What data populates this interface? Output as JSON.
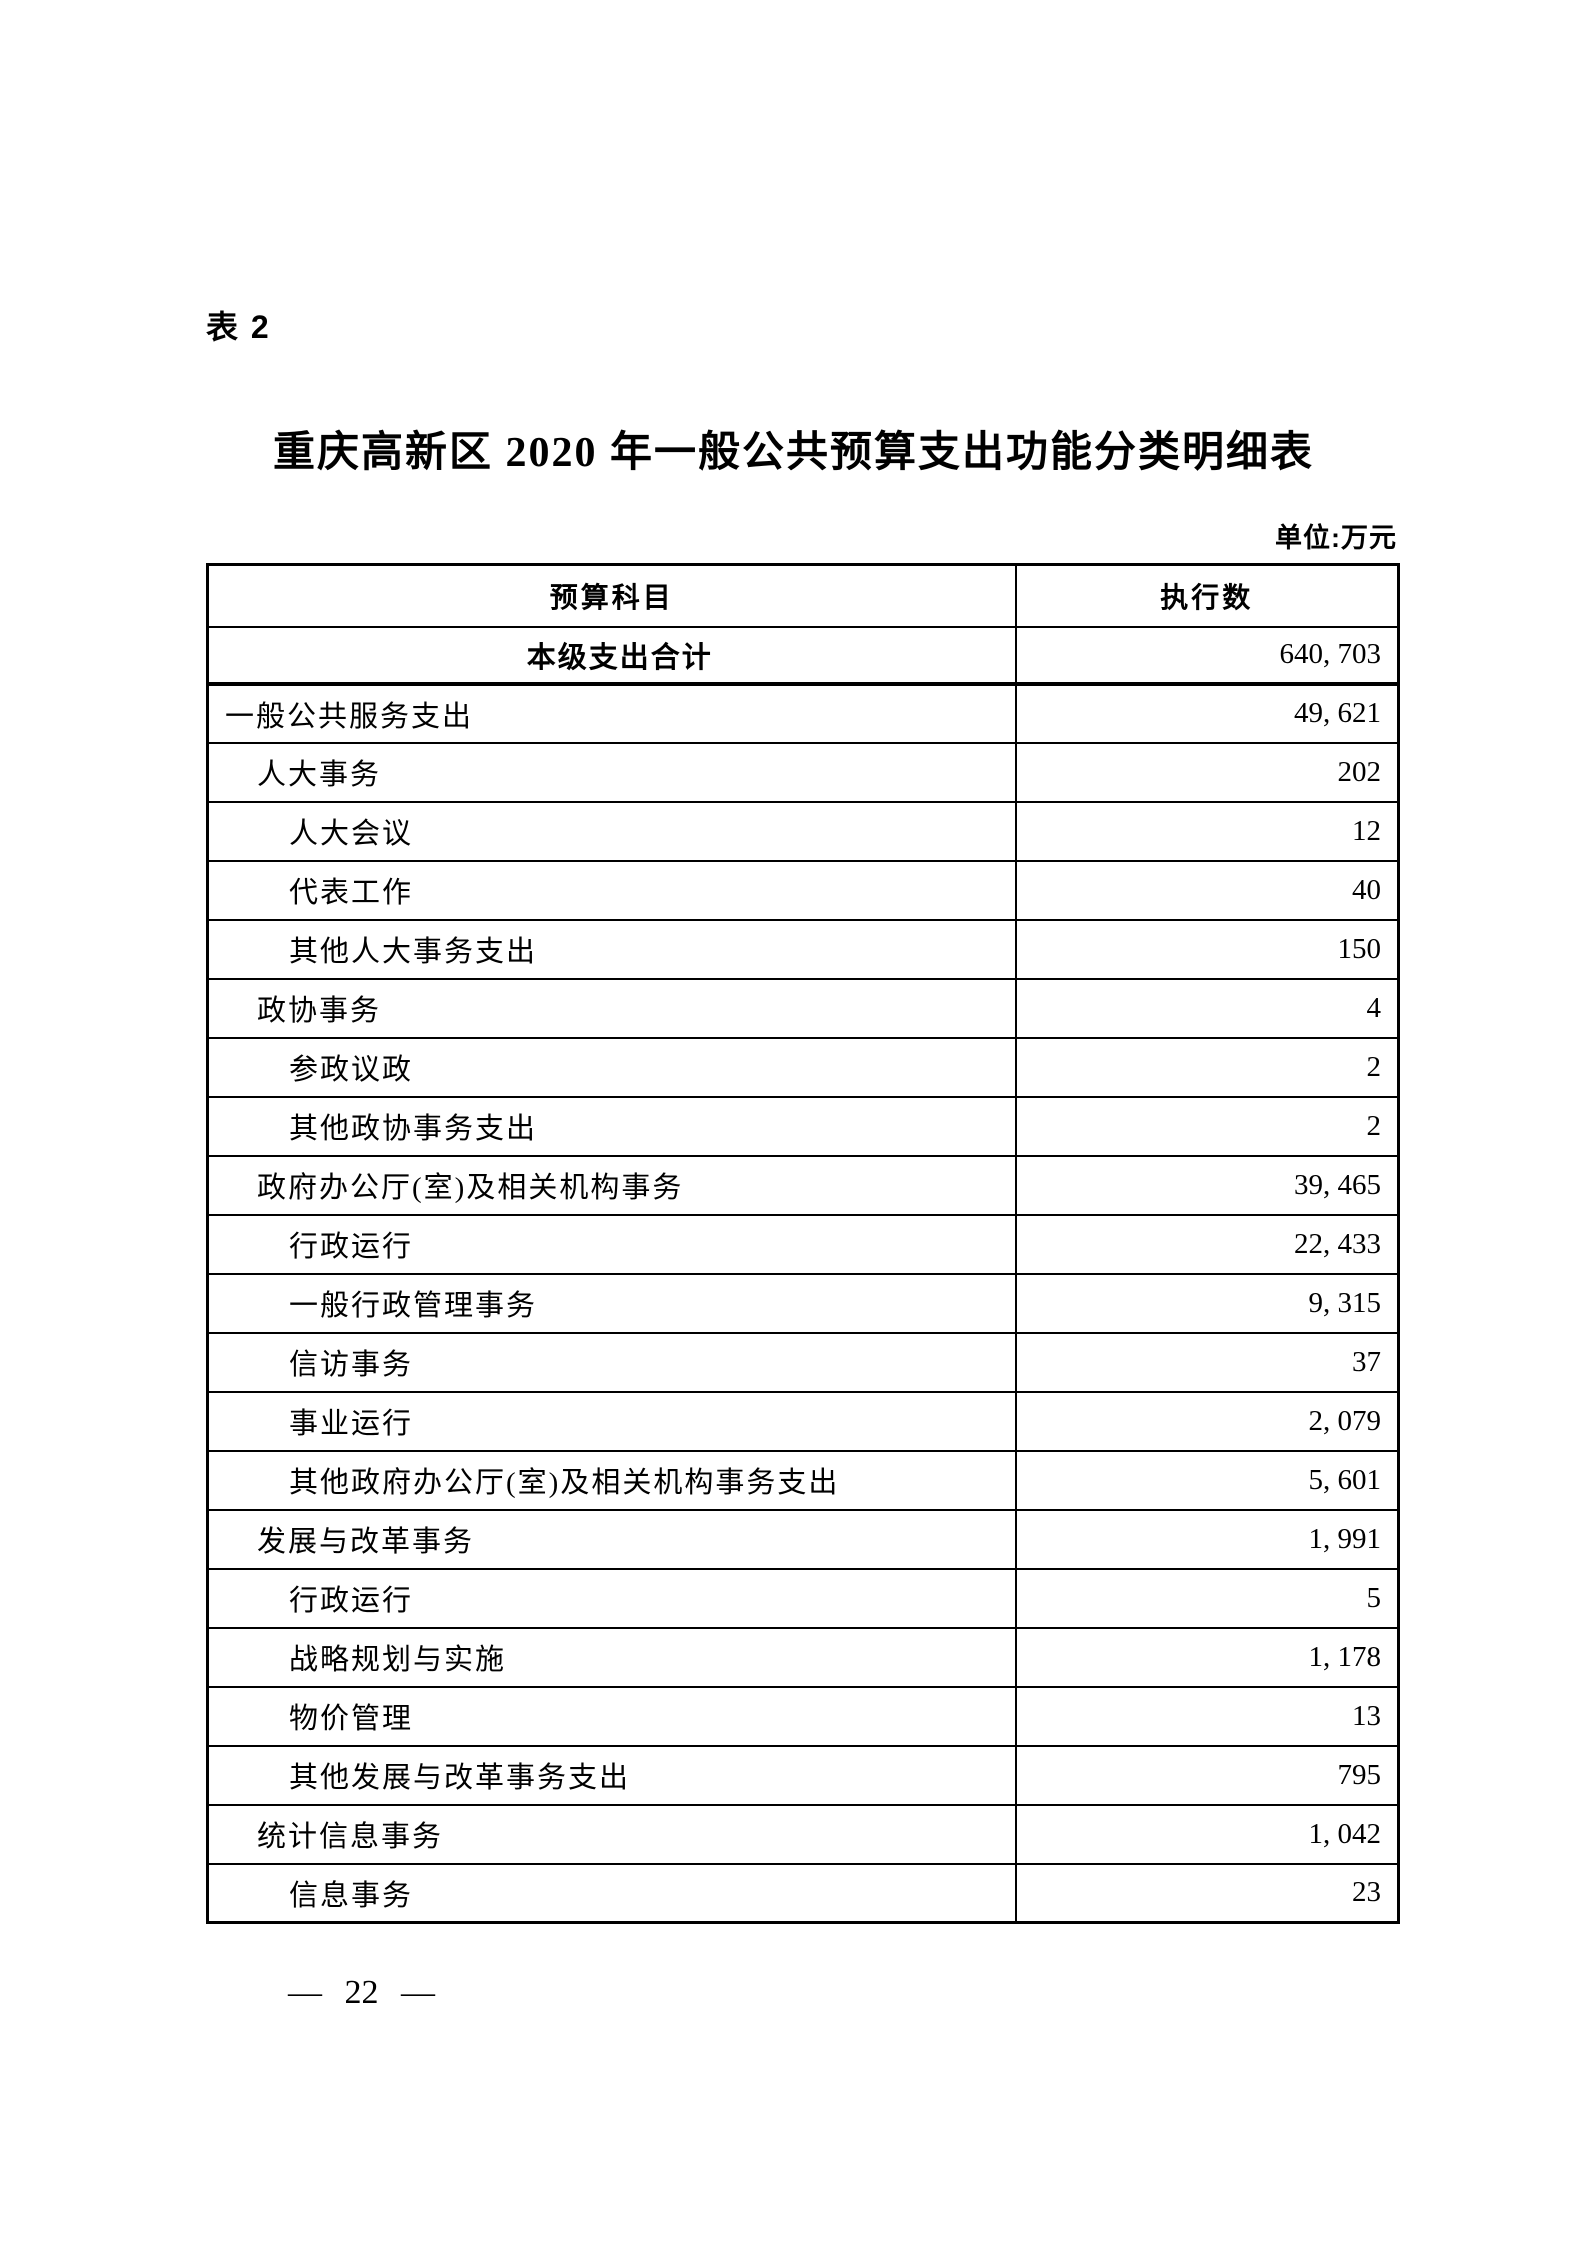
{
  "page": {
    "table_label": "表 2",
    "title": "重庆高新区 2020 年一般公共预算支出功能分类明细表",
    "unit_note": "单位:万元",
    "page_number": "— 22 —"
  },
  "table": {
    "headers": {
      "subject": "预算科目",
      "amount": "执行数"
    },
    "total_row": {
      "label": "本级支出合计",
      "value": "640, 703"
    },
    "rows": [
      {
        "label": "一般公共服务支出",
        "value": "49, 621",
        "indent": 0
      },
      {
        "label": "人大事务",
        "value": "202",
        "indent": 1
      },
      {
        "label": "人大会议",
        "value": "12",
        "indent": 2
      },
      {
        "label": "代表工作",
        "value": "40",
        "indent": 2
      },
      {
        "label": "其他人大事务支出",
        "value": "150",
        "indent": 2
      },
      {
        "label": "政协事务",
        "value": "4",
        "indent": 1
      },
      {
        "label": "参政议政",
        "value": "2",
        "indent": 2
      },
      {
        "label": "其他政协事务支出",
        "value": "2",
        "indent": 2
      },
      {
        "label": "政府办公厅(室)及相关机构事务",
        "value": "39, 465",
        "indent": 1
      },
      {
        "label": "行政运行",
        "value": "22, 433",
        "indent": 2
      },
      {
        "label": "一般行政管理事务",
        "value": "9, 315",
        "indent": 2
      },
      {
        "label": "信访事务",
        "value": "37",
        "indent": 2
      },
      {
        "label": "事业运行",
        "value": "2, 079",
        "indent": 2
      },
      {
        "label": "其他政府办公厅(室)及相关机构事务支出",
        "value": "5, 601",
        "indent": 2
      },
      {
        "label": "发展与改革事务",
        "value": "1, 991",
        "indent": 1
      },
      {
        "label": "行政运行",
        "value": "5",
        "indent": 2
      },
      {
        "label": "战略规划与实施",
        "value": "1, 178",
        "indent": 2
      },
      {
        "label": "物价管理",
        "value": "13",
        "indent": 2
      },
      {
        "label": "其他发展与改革事务支出",
        "value": "795",
        "indent": 2
      },
      {
        "label": "统计信息事务",
        "value": "1, 042",
        "indent": 1
      },
      {
        "label": "信息事务",
        "value": "23",
        "indent": 2
      }
    ]
  }
}
